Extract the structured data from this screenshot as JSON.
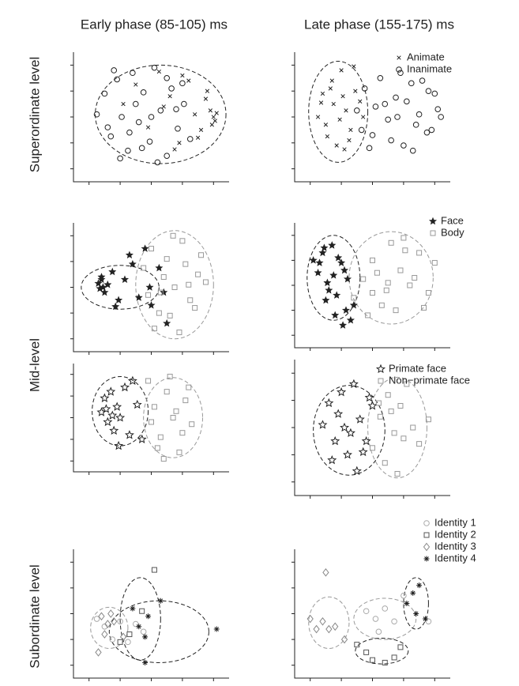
{
  "chart_data": [
    {
      "type": "scatter",
      "title": "Early phase (85-105) ms",
      "ylabel": "Superordinate level",
      "xlim": [
        0,
        10
      ],
      "ylim": [
        0,
        10
      ],
      "xticks": [
        1,
        3,
        5,
        7,
        9
      ],
      "yticks": [
        1,
        3,
        5,
        7,
        9
      ],
      "series": [
        {
          "color": "#222222",
          "marker": "circle",
          "x": [
            1.5,
            2.0,
            2.4,
            2.8,
            3.1,
            3.5,
            3.8,
            4.2,
            4.5,
            4.9,
            5.2,
            5.6,
            6.0,
            6.3,
            6.7,
            7.1,
            7.5,
            2.2,
            3.0,
            4.0,
            5.0,
            6.0,
            7.0,
            3.6,
            5.4,
            6.6,
            4.4,
            2.6
          ],
          "values": [
            5.2,
            6.8,
            3.5,
            7.9,
            5.0,
            2.4,
            8.4,
            4.6,
            6.9,
            3.1,
            8.8,
            5.5,
            2.0,
            7.2,
            4.1,
            6.0,
            3.3,
            4.2,
            1.8,
            6.0,
            5.0,
            8.0,
            7.6,
            3.8,
            1.5,
            5.6,
            2.6,
            8.6
          ]
        },
        {
          "color": "#222222",
          "marker": "cross",
          "x": [
            3.2,
            4.0,
            4.8,
            5.5,
            6.2,
            6.8,
            7.4,
            7.8,
            8.2,
            8.5,
            8.8,
            9.0,
            9.1,
            9.2,
            8.9,
            7.0,
            6.5,
            5.8,
            8.0,
            8.6
          ],
          "values": [
            6.0,
            7.5,
            4.2,
            8.5,
            6.6,
            3.0,
            7.8,
            5.2,
            4.0,
            6.4,
            5.5,
            5.0,
            4.7,
            5.3,
            4.4,
            8.2,
            2.5,
            5.8,
            3.4,
            7.0
          ]
        }
      ],
      "ellipses": [
        {
          "cx": 5.6,
          "cy": 5.2,
          "rx": 4.2,
          "ry": 3.8,
          "color": "#222222"
        }
      ]
    },
    {
      "type": "scatter",
      "title": "Late phase (155-175) ms",
      "xlim": [
        0,
        10
      ],
      "ylim": [
        0,
        10
      ],
      "xticks": [
        1,
        3,
        5,
        7,
        9
      ],
      "yticks": [
        1,
        3,
        5,
        7,
        9
      ],
      "series": [
        {
          "name": "Animate",
          "color": "#222222",
          "marker": "cross",
          "x": [
            1.5,
            1.8,
            2.1,
            2.4,
            2.7,
            3.0,
            3.3,
            3.6,
            3.9,
            4.2,
            2.0,
            2.5,
            3.2,
            3.8,
            1.7,
            2.9,
            3.5,
            4.4,
            2.3,
            3.1
          ],
          "values": [
            5.0,
            6.8,
            3.5,
            7.8,
            2.8,
            8.6,
            5.5,
            4.0,
            7.0,
            6.2,
            4.4,
            6.0,
            2.5,
            8.9,
            6.1,
            4.8,
            3.2,
            5.0,
            7.2,
            6.6
          ]
        },
        {
          "name": "Inanimate",
          "color": "#222222",
          "marker": "circle",
          "x": [
            4.0,
            4.5,
            5.0,
            5.5,
            6.0,
            6.5,
            7.0,
            7.5,
            8.0,
            8.5,
            9.0,
            9.4,
            4.8,
            5.8,
            6.8,
            7.8,
            8.8,
            5.2,
            6.2,
            7.2,
            8.2,
            9.2,
            4.3,
            6.6,
            7.6,
            8.6
          ],
          "values": [
            5.5,
            7.2,
            3.6,
            8.0,
            4.8,
            6.5,
            2.8,
            7.6,
            5.2,
            3.8,
            6.8,
            5.0,
            2.6,
            6.0,
            8.4,
            4.4,
            4.0,
            5.8,
            3.2,
            6.2,
            7.8,
            5.6,
            4.0,
            5.0,
            2.4,
            7.0
          ]
        }
      ],
      "ellipses": [
        {
          "cx": 2.8,
          "cy": 5.4,
          "rx": 1.9,
          "ry": 3.9,
          "color": "#222222"
        }
      ]
    },
    {
      "type": "scatter",
      "ylabel": "Mid-level",
      "xlim": [
        0,
        10
      ],
      "ylim": [
        0,
        10
      ],
      "xticks": [
        1,
        3,
        5,
        7,
        9
      ],
      "yticks": [
        1,
        3,
        5,
        7,
        9
      ],
      "series": [
        {
          "color": "#222222",
          "marker": "star",
          "x": [
            1.6,
            1.7,
            1.8,
            1.9,
            2.0,
            1.8,
            2.2,
            2.5,
            2.9,
            3.3,
            3.8,
            4.2,
            4.6,
            5.0,
            5.5,
            6.0,
            2.7,
            3.6,
            4.9,
            5.8
          ],
          "values": [
            5.3,
            4.9,
            5.6,
            5.0,
            4.6,
            5.8,
            5.2,
            6.2,
            4.0,
            5.6,
            6.8,
            4.2,
            8.0,
            3.6,
            6.5,
            2.2,
            3.5,
            7.5,
            5.0,
            4.6
          ]
        },
        {
          "color": "#999999",
          "marker": "square",
          "x": [
            4.5,
            5.0,
            5.5,
            6.0,
            6.5,
            7.0,
            7.5,
            8.0,
            8.5,
            5.2,
            6.2,
            7.2,
            4.8,
            5.8,
            6.8,
            7.8,
            8.2,
            6.4,
            5.6,
            7.4
          ],
          "values": [
            6.5,
            8.0,
            3.0,
            7.2,
            5.0,
            8.6,
            4.0,
            6.0,
            5.4,
            1.8,
            2.8,
            6.8,
            4.4,
            5.8,
            1.5,
            3.4,
            7.5,
            9.0,
            4.6,
            5.2
          ]
        }
      ],
      "ellipses": [
        {
          "cx": 3.0,
          "cy": 5.0,
          "rx": 2.5,
          "ry": 1.7,
          "color": "#222222"
        },
        {
          "cx": 6.5,
          "cy": 5.2,
          "rx": 2.5,
          "ry": 4.2,
          "color": "#999999"
        }
      ]
    },
    {
      "type": "scatter",
      "xlim": [
        0,
        10
      ],
      "ylim": [
        0,
        10
      ],
      "xticks": [
        1,
        3,
        5,
        7,
        9
      ],
      "yticks": [
        1,
        3,
        5,
        7,
        9
      ],
      "series": [
        {
          "name": "Face",
          "color": "#222222",
          "marker": "star",
          "x": [
            1.2,
            1.5,
            1.8,
            2.1,
            2.4,
            2.7,
            3.0,
            3.3,
            3.6,
            1.6,
            2.2,
            2.8,
            3.4,
            1.9,
            2.5,
            3.1,
            3.8,
            2.0,
            2.6,
            3.2
          ],
          "values": [
            7.0,
            6.0,
            7.6,
            5.2,
            8.2,
            4.2,
            6.8,
            3.0,
            2.2,
            6.8,
            4.6,
            7.2,
            5.5,
            8.0,
            5.8,
            1.8,
            3.4,
            3.8,
            2.6,
            6.2
          ]
        },
        {
          "name": "Body",
          "color": "#999999",
          "marker": "square",
          "x": [
            3.8,
            4.4,
            5.0,
            5.6,
            6.2,
            6.8,
            7.4,
            8.0,
            8.6,
            9.0,
            4.7,
            5.3,
            5.9,
            6.5,
            7.1,
            7.7,
            8.3,
            6.0,
            5.0,
            7.0
          ],
          "values": [
            4.0,
            5.5,
            7.0,
            3.4,
            8.4,
            6.2,
            5.0,
            7.6,
            4.4,
            6.8,
            2.6,
            6.0,
            4.6,
            3.0,
            7.8,
            5.6,
            3.2,
            5.2,
            4.4,
            8.8
          ]
        }
      ],
      "ellipses": [
        {
          "cx": 2.5,
          "cy": 5.6,
          "rx": 1.7,
          "ry": 3.4,
          "color": "#222222"
        },
        {
          "cx": 6.2,
          "cy": 5.6,
          "rx": 2.7,
          "ry": 3.7,
          "color": "#999999"
        }
      ]
    },
    {
      "type": "scatter",
      "xlim": [
        0,
        10
      ],
      "ylim": [
        0,
        10
      ],
      "xticks": [
        1,
        3,
        5,
        7,
        9
      ],
      "yticks": [
        1,
        3,
        5,
        7,
        9
      ],
      "series": [
        {
          "color": "#222222",
          "marker": "star-open",
          "x": [
            1.8,
            2.0,
            2.2,
            2.4,
            2.6,
            2.8,
            3.0,
            3.3,
            3.6,
            2.1,
            2.9,
            3.8,
            4.1,
            4.4,
            2.5
          ],
          "values": [
            5.5,
            6.8,
            4.6,
            7.4,
            3.8,
            6.0,
            5.0,
            7.8,
            3.4,
            5.8,
            2.4,
            8.4,
            6.2,
            3.0,
            5.2
          ]
        },
        {
          "color": "#999999",
          "marker": "square",
          "x": [
            4.8,
            5.2,
            5.6,
            6.0,
            6.4,
            6.8,
            7.2,
            7.6,
            5.4,
            6.2,
            7.0,
            5.0,
            6.6,
            7.4,
            5.8
          ],
          "values": [
            8.4,
            6.0,
            3.2,
            7.4,
            5.0,
            1.8,
            6.6,
            4.4,
            2.2,
            8.8,
            3.6,
            4.6,
            5.6,
            7.8,
            1.2
          ]
        }
      ],
      "ellipses": [
        {
          "cx": 3.0,
          "cy": 5.6,
          "rx": 1.8,
          "ry": 3.2,
          "color": "#222222"
        },
        {
          "cx": 6.4,
          "cy": 5.0,
          "rx": 1.9,
          "ry": 3.7,
          "color": "#999999"
        }
      ]
    },
    {
      "type": "scatter",
      "xlim": [
        0,
        10
      ],
      "ylim": [
        0,
        10
      ],
      "xticks": [
        1,
        3,
        5,
        7,
        9
      ],
      "yticks": [
        1,
        3,
        5,
        7,
        9
      ],
      "series": [
        {
          "name": "Primate face",
          "color": "#222222",
          "marker": "star-open",
          "x": [
            1.8,
            2.2,
            2.6,
            3.0,
            3.4,
            3.8,
            4.2,
            4.6,
            5.0,
            2.4,
            3.2,
            4.0,
            4.8,
            2.8,
            3.6,
            4.4
          ],
          "values": [
            5.2,
            6.8,
            4.0,
            7.6,
            3.0,
            8.2,
            5.6,
            4.0,
            6.6,
            2.6,
            5.0,
            1.8,
            7.2,
            6.0,
            4.6,
            3.2
          ]
        },
        {
          "name": "Non−primate face",
          "color": "#999999",
          "marker": "square",
          "x": [
            5.0,
            5.5,
            6.0,
            6.4,
            6.8,
            7.2,
            7.6,
            8.0,
            8.6,
            5.8,
            6.6,
            7.0,
            6.2,
            5.4
          ],
          "values": [
            3.5,
            5.8,
            7.4,
            4.6,
            6.6,
            8.2,
            5.0,
            3.8,
            5.6,
            2.4,
            1.6,
            4.2,
            6.2,
            6.8
          ]
        }
      ],
      "ellipses": [
        {
          "cx": 3.5,
          "cy": 4.8,
          "rx": 2.3,
          "ry": 3.3,
          "color": "#222222"
        },
        {
          "cx": 6.6,
          "cy": 5.0,
          "rx": 1.9,
          "ry": 3.7,
          "color": "#999999"
        }
      ]
    },
    {
      "type": "scatter",
      "ylabel": "Subordinate level",
      "xlim": [
        0,
        10
      ],
      "ylim": [
        0,
        10
      ],
      "xticks": [
        1,
        3,
        5,
        7,
        9
      ],
      "yticks": [
        1,
        3,
        5,
        7,
        9
      ],
      "series": [
        {
          "color": "#aaaaaa",
          "marker": "circle",
          "x": [
            1.5,
            2.0,
            2.5,
            3.0,
            3.5,
            4.0,
            4.5
          ],
          "values": [
            4.6,
            4.0,
            3.0,
            4.4,
            2.8,
            4.2,
            3.6
          ]
        },
        {
          "color": "#555555",
          "marker": "square",
          "x": [
            5.2,
            3.6,
            4.4,
            3.0
          ],
          "values": [
            8.4,
            3.4,
            5.2,
            2.8
          ]
        },
        {
          "color": "#888888",
          "marker": "diamond",
          "x": [
            1.8,
            2.2,
            2.6,
            1.6,
            2.0,
            2.4,
            3.2
          ],
          "values": [
            4.8,
            4.2,
            4.4,
            2.0,
            3.4,
            5.0,
            3.2
          ]
        },
        {
          "color": "#222222",
          "marker": "asterisk",
          "x": [
            3.8,
            4.8,
            4.2,
            4.6,
            5.6,
            9.2,
            4.6
          ],
          "values": [
            5.4,
            4.8,
            4.0,
            3.2,
            6.0,
            3.8,
            1.2
          ]
        }
      ],
      "ellipses": [
        {
          "cx": 2.3,
          "cy": 3.9,
          "rx": 1.2,
          "ry": 1.6,
          "color": "#999999"
        },
        {
          "cx": 4.3,
          "cy": 4.6,
          "rx": 1.3,
          "ry": 3.2,
          "color": "#222222"
        },
        {
          "cx": 5.5,
          "cy": 3.6,
          "rx": 3.2,
          "ry": 2.4,
          "color": "#222222"
        }
      ]
    },
    {
      "type": "scatter",
      "xlim": [
        0,
        10
      ],
      "ylim": [
        0,
        10
      ],
      "xticks": [
        1,
        3,
        5,
        7,
        9
      ],
      "yticks": [
        1,
        3,
        5,
        7,
        9
      ],
      "series": [
        {
          "name": "Identity 1",
          "color": "#aaaaaa",
          "marker": "circle",
          "x": [
            4.6,
            5.2,
            5.8,
            6.4,
            7.0,
            8.6,
            5.4
          ],
          "values": [
            5.2,
            4.6,
            5.4,
            4.4,
            6.4,
            4.4,
            3.6
          ]
        },
        {
          "name": "Identity 2",
          "color": "#555555",
          "marker": "square",
          "x": [
            4.0,
            5.0,
            5.8,
            6.4,
            6.8,
            4.6
          ],
          "values": [
            2.6,
            1.4,
            1.2,
            1.6,
            2.4,
            2.0
          ]
        },
        {
          "name": "Identity 3",
          "color": "#888888",
          "marker": "diamond",
          "x": [
            1.0,
            1.4,
            1.8,
            2.2,
            2.6,
            3.2,
            2.0
          ],
          "values": [
            4.6,
            3.8,
            4.4,
            3.8,
            4.0,
            3.0,
            8.2
          ]
        },
        {
          "name": "Identity 4",
          "color": "#222222",
          "marker": "asterisk",
          "x": [
            7.2,
            7.6,
            8.0,
            8.4,
            7.8
          ],
          "values": [
            5.8,
            6.6,
            7.2,
            4.6,
            5.0
          ]
        }
      ],
      "ellipses": [
        {
          "cx": 2.2,
          "cy": 4.3,
          "rx": 1.3,
          "ry": 2.0,
          "color": "#999999"
        },
        {
          "cx": 5.8,
          "cy": 4.6,
          "rx": 2.0,
          "ry": 1.6,
          "color": "#999999"
        },
        {
          "cx": 5.6,
          "cy": 2.1,
          "rx": 1.7,
          "ry": 1.0,
          "color": "#222222"
        },
        {
          "cx": 7.8,
          "cy": 5.8,
          "rx": 0.8,
          "ry": 2.0,
          "color": "#222222"
        }
      ]
    }
  ]
}
